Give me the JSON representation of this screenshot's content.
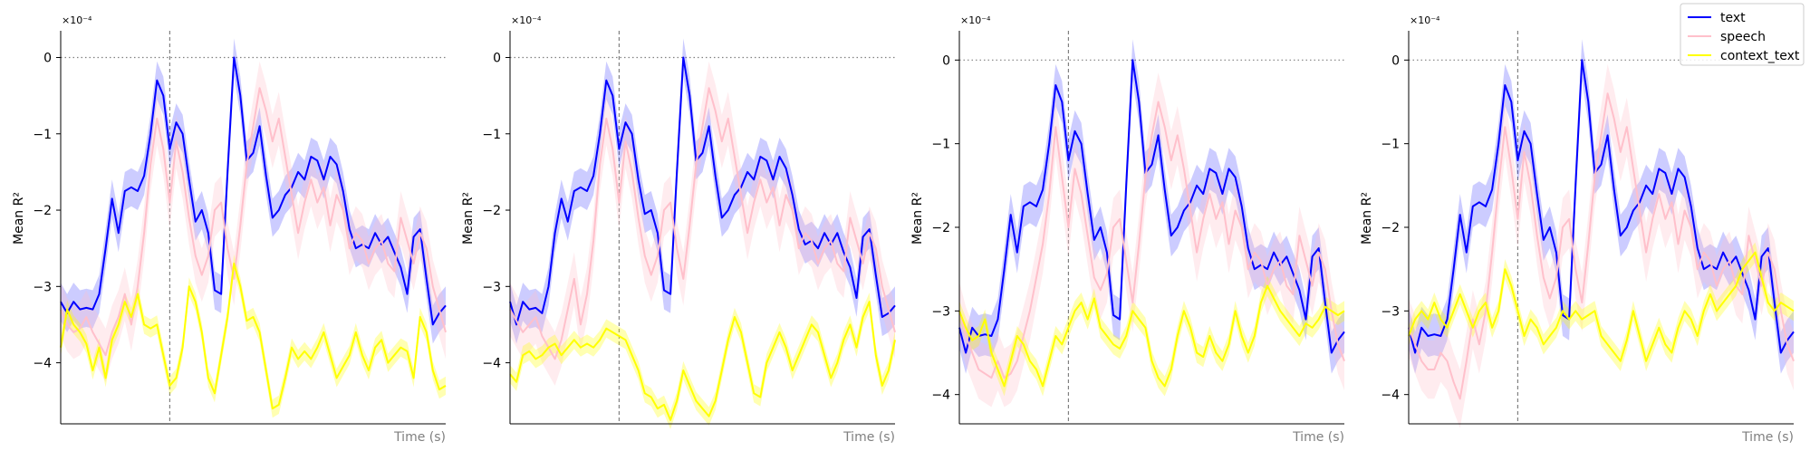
{
  "chart_data": {
    "type": "line",
    "legend": {
      "placement": "top-right",
      "entries": [
        {
          "name": "text",
          "color": "#0000ff"
        },
        {
          "name": "speech",
          "color": "#ffc0cb"
        },
        {
          "name": "context_text",
          "color": "#ffff00"
        }
      ]
    },
    "panels": [
      {
        "xlabel": "Time (s)",
        "ylabel": "Mean R²",
        "exponent_label": "×10⁻⁴",
        "ylim": [
          -4.8,
          0.35
        ],
        "yticks": [
          0,
          -1,
          -2,
          -3,
          -4
        ],
        "ytick_labels": [
          "0",
          "−1",
          "−2",
          "−3",
          "−4"
        ],
        "zero_line": 0,
        "event_marker_index": 17,
        "series": [
          {
            "name": "text",
            "color": "#0000ff",
            "band": 0.25,
            "values": [
              -3.2,
              -3.35,
              -3.2,
              -3.3,
              -3.28,
              -3.3,
              -3.1,
              -2.5,
              -1.85,
              -2.3,
              -1.75,
              -1.7,
              -1.75,
              -1.55,
              -1.0,
              -0.3,
              -0.5,
              -1.2,
              -0.85,
              -1.0,
              -1.6,
              -2.15,
              -2.0,
              -2.3,
              -3.05,
              -3.1,
              -1.5,
              0.0,
              -0.5,
              -1.35,
              -1.25,
              -0.9,
              -1.55,
              -2.1,
              -2.0,
              -1.8,
              -1.7,
              -1.5,
              -1.6,
              -1.3,
              -1.35,
              -1.6,
              -1.3,
              -1.4,
              -1.75,
              -2.25,
              -2.5,
              -2.45,
              -2.5,
              -2.3,
              -2.45,
              -2.35,
              -2.55,
              -2.75,
              -3.1,
              -2.35,
              -2.25,
              -2.9,
              -3.5,
              -3.35,
              -3.25
            ]
          },
          {
            "name": "speech",
            "color": "#ffc0cb",
            "band": 0.35,
            "values": [
              -3.3,
              -3.5,
              -3.6,
              -3.55,
              -3.4,
              -3.6,
              -3.75,
              -3.9,
              -3.6,
              -3.4,
              -3.1,
              -3.5,
              -3.0,
              -2.3,
              -1.4,
              -0.8,
              -1.2,
              -1.9,
              -1.1,
              -1.5,
              -2.1,
              -2.6,
              -2.85,
              -2.6,
              -2.0,
              -1.9,
              -2.5,
              -2.9,
              -2.2,
              -1.4,
              -0.9,
              -0.4,
              -0.7,
              -1.1,
              -0.8,
              -1.3,
              -1.8,
              -2.3,
              -1.9,
              -1.6,
              -1.9,
              -1.7,
              -2.2,
              -1.8,
              -2.0,
              -2.5,
              -2.3,
              -2.4,
              -2.7,
              -2.5,
              -2.4,
              -2.7,
              -2.8,
              -2.1,
              -2.4,
              -2.7,
              -2.3,
              -2.5,
              -3.0,
              -3.3,
              -3.6
            ]
          },
          {
            "name": "context_text",
            "color": "#ffff00",
            "band": 0.12,
            "values": [
              -3.8,
              -3.3,
              -3.5,
              -3.6,
              -3.75,
              -4.1,
              -3.8,
              -4.2,
              -3.7,
              -3.5,
              -3.2,
              -3.4,
              -3.1,
              -3.5,
              -3.55,
              -3.5,
              -3.9,
              -4.3,
              -4.2,
              -3.8,
              -3.0,
              -3.2,
              -3.6,
              -4.2,
              -4.4,
              -3.9,
              -3.4,
              -2.7,
              -3.0,
              -3.45,
              -3.4,
              -3.6,
              -4.1,
              -4.6,
              -4.55,
              -4.2,
              -3.8,
              -3.95,
              -3.85,
              -3.95,
              -3.8,
              -3.6,
              -3.9,
              -4.2,
              -4.05,
              -3.9,
              -3.6,
              -3.9,
              -4.1,
              -3.8,
              -3.7,
              -4.0,
              -3.9,
              -3.8,
              -3.85,
              -4.2,
              -3.4,
              -3.6,
              -4.1,
              -4.35,
              -4.3
            ]
          }
        ]
      },
      {
        "xlabel": "Time (s)",
        "ylabel": "Mean R²",
        "exponent_label": "×10⁻⁴",
        "ylim": [
          -4.8,
          0.35
        ],
        "yticks": [
          0,
          -1,
          -2,
          -3,
          -4
        ],
        "ytick_labels": [
          "0",
          "−1",
          "−2",
          "−3",
          "−4"
        ],
        "zero_line": 0,
        "event_marker_index": 17,
        "series": [
          {
            "name": "text",
            "color": "#0000ff",
            "band": 0.25,
            "values": [
              -3.2,
              -3.5,
              -3.2,
              -3.3,
              -3.28,
              -3.35,
              -3.0,
              -2.3,
              -1.85,
              -2.15,
              -1.75,
              -1.7,
              -1.75,
              -1.55,
              -1.0,
              -0.3,
              -0.5,
              -1.2,
              -0.85,
              -1.0,
              -1.6,
              -2.05,
              -2.0,
              -2.3,
              -3.05,
              -3.1,
              -1.5,
              0.0,
              -0.5,
              -1.35,
              -1.25,
              -0.9,
              -1.55,
              -2.1,
              -2.0,
              -1.8,
              -1.7,
              -1.5,
              -1.6,
              -1.3,
              -1.35,
              -1.6,
              -1.3,
              -1.45,
              -1.8,
              -2.25,
              -2.45,
              -2.4,
              -2.5,
              -2.3,
              -2.45,
              -2.3,
              -2.55,
              -2.75,
              -3.15,
              -2.35,
              -2.25,
              -2.85,
              -3.4,
              -3.35,
              -3.25
            ]
          },
          {
            "name": "speech",
            "color": "#ffc0cb",
            "band": 0.35,
            "values": [
              -3.3,
              -3.45,
              -3.6,
              -3.5,
              -3.4,
              -3.65,
              -3.8,
              -3.95,
              -3.7,
              -3.3,
              -2.9,
              -3.5,
              -3.1,
              -2.4,
              -1.4,
              -0.8,
              -1.2,
              -1.9,
              -1.1,
              -1.5,
              -2.1,
              -2.6,
              -2.85,
              -2.6,
              -2.0,
              -1.9,
              -2.5,
              -2.9,
              -2.2,
              -1.4,
              -0.9,
              -0.4,
              -0.7,
              -1.1,
              -0.8,
              -1.3,
              -1.8,
              -2.3,
              -1.9,
              -1.6,
              -1.9,
              -1.7,
              -2.2,
              -1.8,
              -2.0,
              -2.5,
              -2.3,
              -2.4,
              -2.7,
              -2.5,
              -2.4,
              -2.7,
              -2.8,
              -2.1,
              -2.4,
              -2.7,
              -2.3,
              -2.5,
              -3.0,
              -3.3,
              -3.6
            ]
          },
          {
            "name": "context_text",
            "color": "#ffff00",
            "band": 0.12,
            "values": [
              -4.15,
              -4.25,
              -3.9,
              -3.85,
              -3.95,
              -3.9,
              -3.8,
              -3.75,
              -3.9,
              -3.8,
              -3.7,
              -3.8,
              -3.75,
              -3.8,
              -3.7,
              -3.55,
              -3.6,
              -3.65,
              -3.7,
              -3.9,
              -4.1,
              -4.4,
              -4.45,
              -4.6,
              -4.55,
              -4.75,
              -4.5,
              -4.1,
              -4.3,
              -4.5,
              -4.6,
              -4.7,
              -4.5,
              -4.1,
              -3.7,
              -3.4,
              -3.6,
              -4.0,
              -4.4,
              -4.45,
              -4.0,
              -3.8,
              -3.6,
              -3.8,
              -4.1,
              -3.9,
              -3.7,
              -3.5,
              -3.6,
              -3.9,
              -4.2,
              -4.0,
              -3.7,
              -3.5,
              -3.8,
              -3.4,
              -3.2,
              -3.9,
              -4.3,
              -4.1,
              -3.7
            ]
          }
        ]
      },
      {
        "xlabel": "Time (s)",
        "ylabel": "Mean R²",
        "exponent_label": "×10⁻⁴",
        "ylim": [
          -4.35,
          0.35
        ],
        "yticks": [
          0,
          -1,
          -2,
          -3,
          -4
        ],
        "ytick_labels": [
          "0",
          "−1",
          "−2",
          "−3",
          "−4"
        ],
        "zero_line": 0,
        "event_marker_index": 17,
        "series": [
          {
            "name": "text",
            "color": "#0000ff",
            "band": 0.25,
            "values": [
              -3.2,
              -3.5,
              -3.2,
              -3.3,
              -3.28,
              -3.3,
              -3.1,
              -2.5,
              -1.85,
              -2.3,
              -1.75,
              -1.7,
              -1.75,
              -1.55,
              -1.0,
              -0.3,
              -0.5,
              -1.2,
              -0.85,
              -1.0,
              -1.6,
              -2.15,
              -2.0,
              -2.3,
              -3.05,
              -3.1,
              -1.5,
              0.0,
              -0.5,
              -1.35,
              -1.25,
              -0.9,
              -1.55,
              -2.1,
              -2.0,
              -1.8,
              -1.7,
              -1.5,
              -1.6,
              -1.3,
              -1.35,
              -1.6,
              -1.3,
              -1.4,
              -1.75,
              -2.25,
              -2.5,
              -2.45,
              -2.5,
              -2.3,
              -2.45,
              -2.35,
              -2.55,
              -2.75,
              -3.1,
              -2.35,
              -2.25,
              -2.9,
              -3.5,
              -3.35,
              -3.25
            ]
          },
          {
            "name": "speech",
            "color": "#ffc0cb",
            "band": 0.35,
            "values": [
              -3.0,
              -3.3,
              -3.5,
              -3.7,
              -3.75,
              -3.8,
              -3.6,
              -3.8,
              -3.75,
              -3.6,
              -3.3,
              -3.0,
              -2.6,
              -2.2,
              -1.6,
              -0.8,
              -1.4,
              -2.0,
              -1.3,
              -1.6,
              -2.1,
              -2.6,
              -2.75,
              -2.55,
              -2.0,
              -1.9,
              -2.4,
              -2.9,
              -2.2,
              -1.4,
              -0.9,
              -0.5,
              -0.8,
              -1.2,
              -0.9,
              -1.3,
              -1.8,
              -2.3,
              -1.9,
              -1.6,
              -1.9,
              -1.7,
              -2.2,
              -1.8,
              -2.0,
              -2.5,
              -2.3,
              -2.4,
              -2.7,
              -2.5,
              -2.4,
              -2.7,
              -2.8,
              -2.1,
              -2.4,
              -2.7,
              -2.3,
              -2.5,
              -3.0,
              -3.4,
              -3.6
            ]
          },
          {
            "name": "context_text",
            "color": "#ffff00",
            "band": 0.12,
            "values": [
              -3.0,
              -3.2,
              -3.35,
              -3.3,
              -3.1,
              -3.5,
              -3.7,
              -3.9,
              -3.6,
              -3.3,
              -3.4,
              -3.6,
              -3.7,
              -3.9,
              -3.6,
              -3.3,
              -3.4,
              -3.2,
              -3.0,
              -2.9,
              -3.1,
              -2.85,
              -3.2,
              -3.3,
              -3.4,
              -3.45,
              -3.3,
              -3.0,
              -3.1,
              -3.2,
              -3.6,
              -3.8,
              -3.9,
              -3.7,
              -3.3,
              -3.0,
              -3.2,
              -3.5,
              -3.55,
              -3.3,
              -3.5,
              -3.6,
              -3.4,
              -3.0,
              -3.3,
              -3.5,
              -3.3,
              -2.9,
              -2.7,
              -2.85,
              -3.0,
              -3.1,
              -3.2,
              -3.3,
              -3.15,
              -3.2,
              -3.1,
              -2.95,
              -3.0,
              -3.05,
              -3.0
            ]
          }
        ]
      },
      {
        "xlabel": "Time (s)",
        "ylabel": "Mean R²",
        "exponent_label": "×10⁻⁴",
        "ylim": [
          -4.35,
          0.35
        ],
        "yticks": [
          0,
          -1,
          -2,
          -3,
          -4
        ],
        "ytick_labels": [
          "0",
          "−1",
          "−2",
          "−3",
          "−4"
        ],
        "zero_line": 0,
        "event_marker_index": 17,
        "series": [
          {
            "name": "text",
            "color": "#0000ff",
            "band": 0.25,
            "values": [
              -3.2,
              -3.5,
              -3.2,
              -3.3,
              -3.28,
              -3.3,
              -3.1,
              -2.5,
              -1.85,
              -2.3,
              -1.75,
              -1.7,
              -1.75,
              -1.55,
              -1.0,
              -0.3,
              -0.5,
              -1.2,
              -0.85,
              -1.0,
              -1.6,
              -2.15,
              -2.0,
              -2.3,
              -3.05,
              -3.1,
              -1.5,
              0.0,
              -0.5,
              -1.35,
              -1.25,
              -0.9,
              -1.55,
              -2.1,
              -2.0,
              -1.8,
              -1.7,
              -1.5,
              -1.6,
              -1.3,
              -1.35,
              -1.6,
              -1.3,
              -1.4,
              -1.75,
              -2.25,
              -2.5,
              -2.45,
              -2.5,
              -2.3,
              -2.45,
              -2.35,
              -2.55,
              -2.75,
              -3.1,
              -2.35,
              -2.25,
              -2.9,
              -3.5,
              -3.35,
              -3.25
            ]
          },
          {
            "name": "speech",
            "color": "#ffc0cb",
            "band": 0.35,
            "values": [
              -3.2,
              -3.4,
              -3.6,
              -3.7,
              -3.7,
              -3.5,
              -3.6,
              -3.85,
              -4.05,
              -3.6,
              -3.1,
              -3.4,
              -3.0,
              -2.3,
              -1.5,
              -0.8,
              -1.3,
              -1.9,
              -1.1,
              -1.5,
              -2.1,
              -2.6,
              -2.85,
              -2.6,
              -2.0,
              -1.9,
              -2.5,
              -2.9,
              -2.2,
              -1.4,
              -0.9,
              -0.4,
              -0.7,
              -1.1,
              -0.8,
              -1.3,
              -1.8,
              -2.3,
              -1.9,
              -1.6,
              -1.9,
              -1.7,
              -2.2,
              -1.8,
              -2.0,
              -2.5,
              -2.3,
              -2.4,
              -2.7,
              -2.5,
              -2.4,
              -2.7,
              -2.8,
              -2.1,
              -2.4,
              -2.7,
              -2.3,
              -2.5,
              -3.0,
              -3.4,
              -3.6
            ]
          },
          {
            "name": "context_text",
            "color": "#ffff00",
            "band": 0.12,
            "values": [
              -3.3,
              -3.1,
              -3.0,
              -3.1,
              -2.9,
              -3.1,
              -3.2,
              -3.0,
              -2.8,
              -3.0,
              -3.2,
              -3.0,
              -2.9,
              -3.2,
              -3.0,
              -2.5,
              -2.7,
              -3.0,
              -3.3,
              -3.1,
              -3.2,
              -3.4,
              -3.3,
              -3.2,
              -3.0,
              -3.1,
              -3.0,
              -3.1,
              -3.05,
              -3.0,
              -3.3,
              -3.4,
              -3.5,
              -3.6,
              -3.35,
              -3.0,
              -3.3,
              -3.6,
              -3.4,
              -3.2,
              -3.4,
              -3.5,
              -3.2,
              -3.0,
              -3.1,
              -3.3,
              -3.0,
              -2.8,
              -3.0,
              -2.9,
              -2.8,
              -2.7,
              -2.5,
              -2.4,
              -2.3,
              -2.6,
              -2.9,
              -3.0,
              -2.9,
              -2.95,
              -3.0
            ]
          }
        ]
      }
    ]
  }
}
